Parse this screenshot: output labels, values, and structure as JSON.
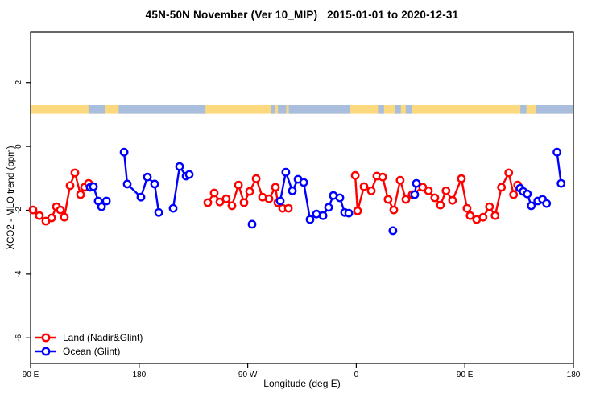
{
  "chart_data": {
    "type": "line",
    "subtype": "scatter-line-open-circles",
    "title": "45N-50N November (Ver 10_MIP)   2015-01-01 to 2020-12-31",
    "xlabel": "Longitude (deg E)",
    "ylabel": "XCO2 - MLO trend (ppm)",
    "grid": "off",
    "legend_position": "bottom-left-inside",
    "x_axis": {
      "description": "longitude axis starting at 90E wrapping eastward 450 degrees",
      "range_deg": [
        0,
        450
      ],
      "ticks": [
        {
          "deg": 0,
          "label": "90 E"
        },
        {
          "deg": 90,
          "label": "180"
        },
        {
          "deg": 180,
          "label": "90 W"
        },
        {
          "deg": 270,
          "label": "0"
        },
        {
          "deg": 360,
          "label": "90 E"
        },
        {
          "deg": 450,
          "label": "180"
        }
      ]
    },
    "y_axis": {
      "range_ppm": [
        -6.8,
        3.58
      ],
      "ticks": [
        2,
        0,
        -2,
        -4,
        -6
      ]
    },
    "band": {
      "meaning": "land/ocean strip along latitude band",
      "y_range_ppm": [
        1.02,
        1.3
      ],
      "land_color": "#fcd87f",
      "ocean_color": "#a9bedd",
      "ocean_segments_deg": [
        [
          48,
          62
        ],
        [
          73,
          145
        ],
        [
          199,
          203
        ],
        [
          205,
          212
        ],
        [
          214,
          265
        ],
        [
          288,
          293
        ],
        [
          302,
          307
        ],
        [
          311,
          316
        ],
        [
          406,
          450
        ]
      ],
      "land_patches_deg": [
        [
          411,
          419
        ]
      ]
    },
    "series": [
      {
        "name": "Land (Nadir&Glint)",
        "color": "#ff0000",
        "segments": [
          [
            [
              2.0,
              -1.99
            ],
            [
              7.3,
              -2.17
            ],
            [
              12.7,
              -2.34
            ],
            [
              17.4,
              -2.24
            ],
            [
              21.4,
              -1.89
            ],
            [
              24.7,
              -1.99
            ],
            [
              28.0,
              -2.22
            ],
            [
              32.7,
              -1.23
            ],
            [
              36.7,
              -0.83
            ],
            [
              41.4,
              -1.51
            ],
            [
              44.7,
              -1.28
            ],
            [
              48.1,
              -1.16
            ]
          ],
          [
            [
              146.9,
              -1.76
            ],
            [
              152.2,
              -1.46
            ],
            [
              156.9,
              -1.74
            ],
            [
              162.2,
              -1.64
            ],
            [
              166.9,
              -1.86
            ],
            [
              172.3,
              -1.21
            ],
            [
              176.9,
              -1.76
            ],
            [
              181.6,
              -1.41
            ],
            [
              187.0,
              -1.01
            ],
            [
              192.3,
              -1.59
            ],
            [
              197.6,
              -1.64
            ],
            [
              203.0,
              -1.28
            ],
            [
              205.0,
              -1.76
            ],
            [
              209.0,
              -1.94
            ],
            [
              213.7,
              -1.94
            ]
          ],
          [
            [
              269.1,
              -0.91
            ],
            [
              271.1,
              -2.02
            ],
            [
              276.4,
              -1.26
            ],
            [
              282.4,
              -1.39
            ],
            [
              287.1,
              -0.93
            ],
            [
              291.8,
              -0.96
            ],
            [
              296.4,
              -1.66
            ],
            [
              301.1,
              -1.99
            ],
            [
              306.4,
              -1.06
            ],
            [
              311.1,
              -1.66
            ],
            [
              316.4,
              -1.51
            ],
            [
              325.1,
              -1.28
            ],
            [
              329.8,
              -1.39
            ],
            [
              335.1,
              -1.61
            ],
            [
              339.8,
              -1.84
            ],
            [
              344.4,
              -1.39
            ],
            [
              349.8,
              -1.69
            ],
            [
              357.1,
              -1.01
            ],
            [
              361.8,
              -1.94
            ],
            [
              364.4,
              -2.17
            ],
            [
              369.8,
              -2.29
            ],
            [
              375.1,
              -2.22
            ],
            [
              380.4,
              -1.89
            ],
            [
              385.1,
              -2.17
            ],
            [
              390.4,
              -1.28
            ],
            [
              396.4,
              -0.83
            ],
            [
              400.4,
              -1.51
            ],
            [
              403.8,
              -1.21
            ]
          ]
        ]
      },
      {
        "name": "Ocean (Glint)",
        "color": "#0000ff",
        "segments": [
          [
            [
              49.4,
              -1.28
            ],
            [
              52.1,
              -1.26
            ],
            [
              56.1,
              -1.71
            ],
            [
              58.8,
              -1.89
            ],
            [
              62.8,
              -1.71
            ]
          ],
          [
            [
              77.5,
              -0.18
            ],
            [
              80.1,
              -1.18
            ],
            [
              91.5,
              -1.59
            ],
            [
              96.8,
              -0.96
            ],
            [
              102.8,
              -1.18
            ],
            [
              106.2,
              -2.07
            ]
          ],
          [
            [
              118.2,
              -1.94
            ],
            [
              123.5,
              -0.63
            ],
            [
              128.9,
              -0.93
            ],
            [
              131.5,
              -0.88
            ]
          ],
          [
            [
              183.6,
              -2.44
            ]
          ],
          [
            [
              207.0,
              -1.71
            ],
            [
              211.6,
              -0.81
            ],
            [
              217.0,
              -1.39
            ],
            [
              221.7,
              -1.03
            ],
            [
              226.4,
              -1.13
            ],
            [
              231.7,
              -2.29
            ],
            [
              237.0,
              -2.12
            ],
            [
              242.4,
              -2.17
            ],
            [
              247.0,
              -1.91
            ],
            [
              251.0,
              -1.54
            ],
            [
              256.4,
              -1.61
            ],
            [
              260.4,
              -2.07
            ],
            [
              263.8,
              -2.09
            ]
          ],
          [
            [
              300.4,
              -2.64
            ]
          ],
          [
            [
              318.4,
              -1.51
            ],
            [
              319.8,
              -1.16
            ]
          ],
          [
            [
              405.8,
              -1.31
            ],
            [
              408.4,
              -1.41
            ],
            [
              411.8,
              -1.49
            ],
            [
              415.1,
              -1.86
            ],
            [
              420.4,
              -1.71
            ],
            [
              424.4,
              -1.66
            ],
            [
              427.8,
              -1.79
            ]
          ],
          [
            [
              436.4,
              -0.18
            ],
            [
              439.8,
              -1.16
            ]
          ]
        ]
      }
    ],
    "legend": {
      "entries": [
        {
          "label": "Land (Nadir&Glint)",
          "color": "#ff0000"
        },
        {
          "label": "Ocean (Glint)",
          "color": "#0000ff"
        }
      ]
    }
  }
}
